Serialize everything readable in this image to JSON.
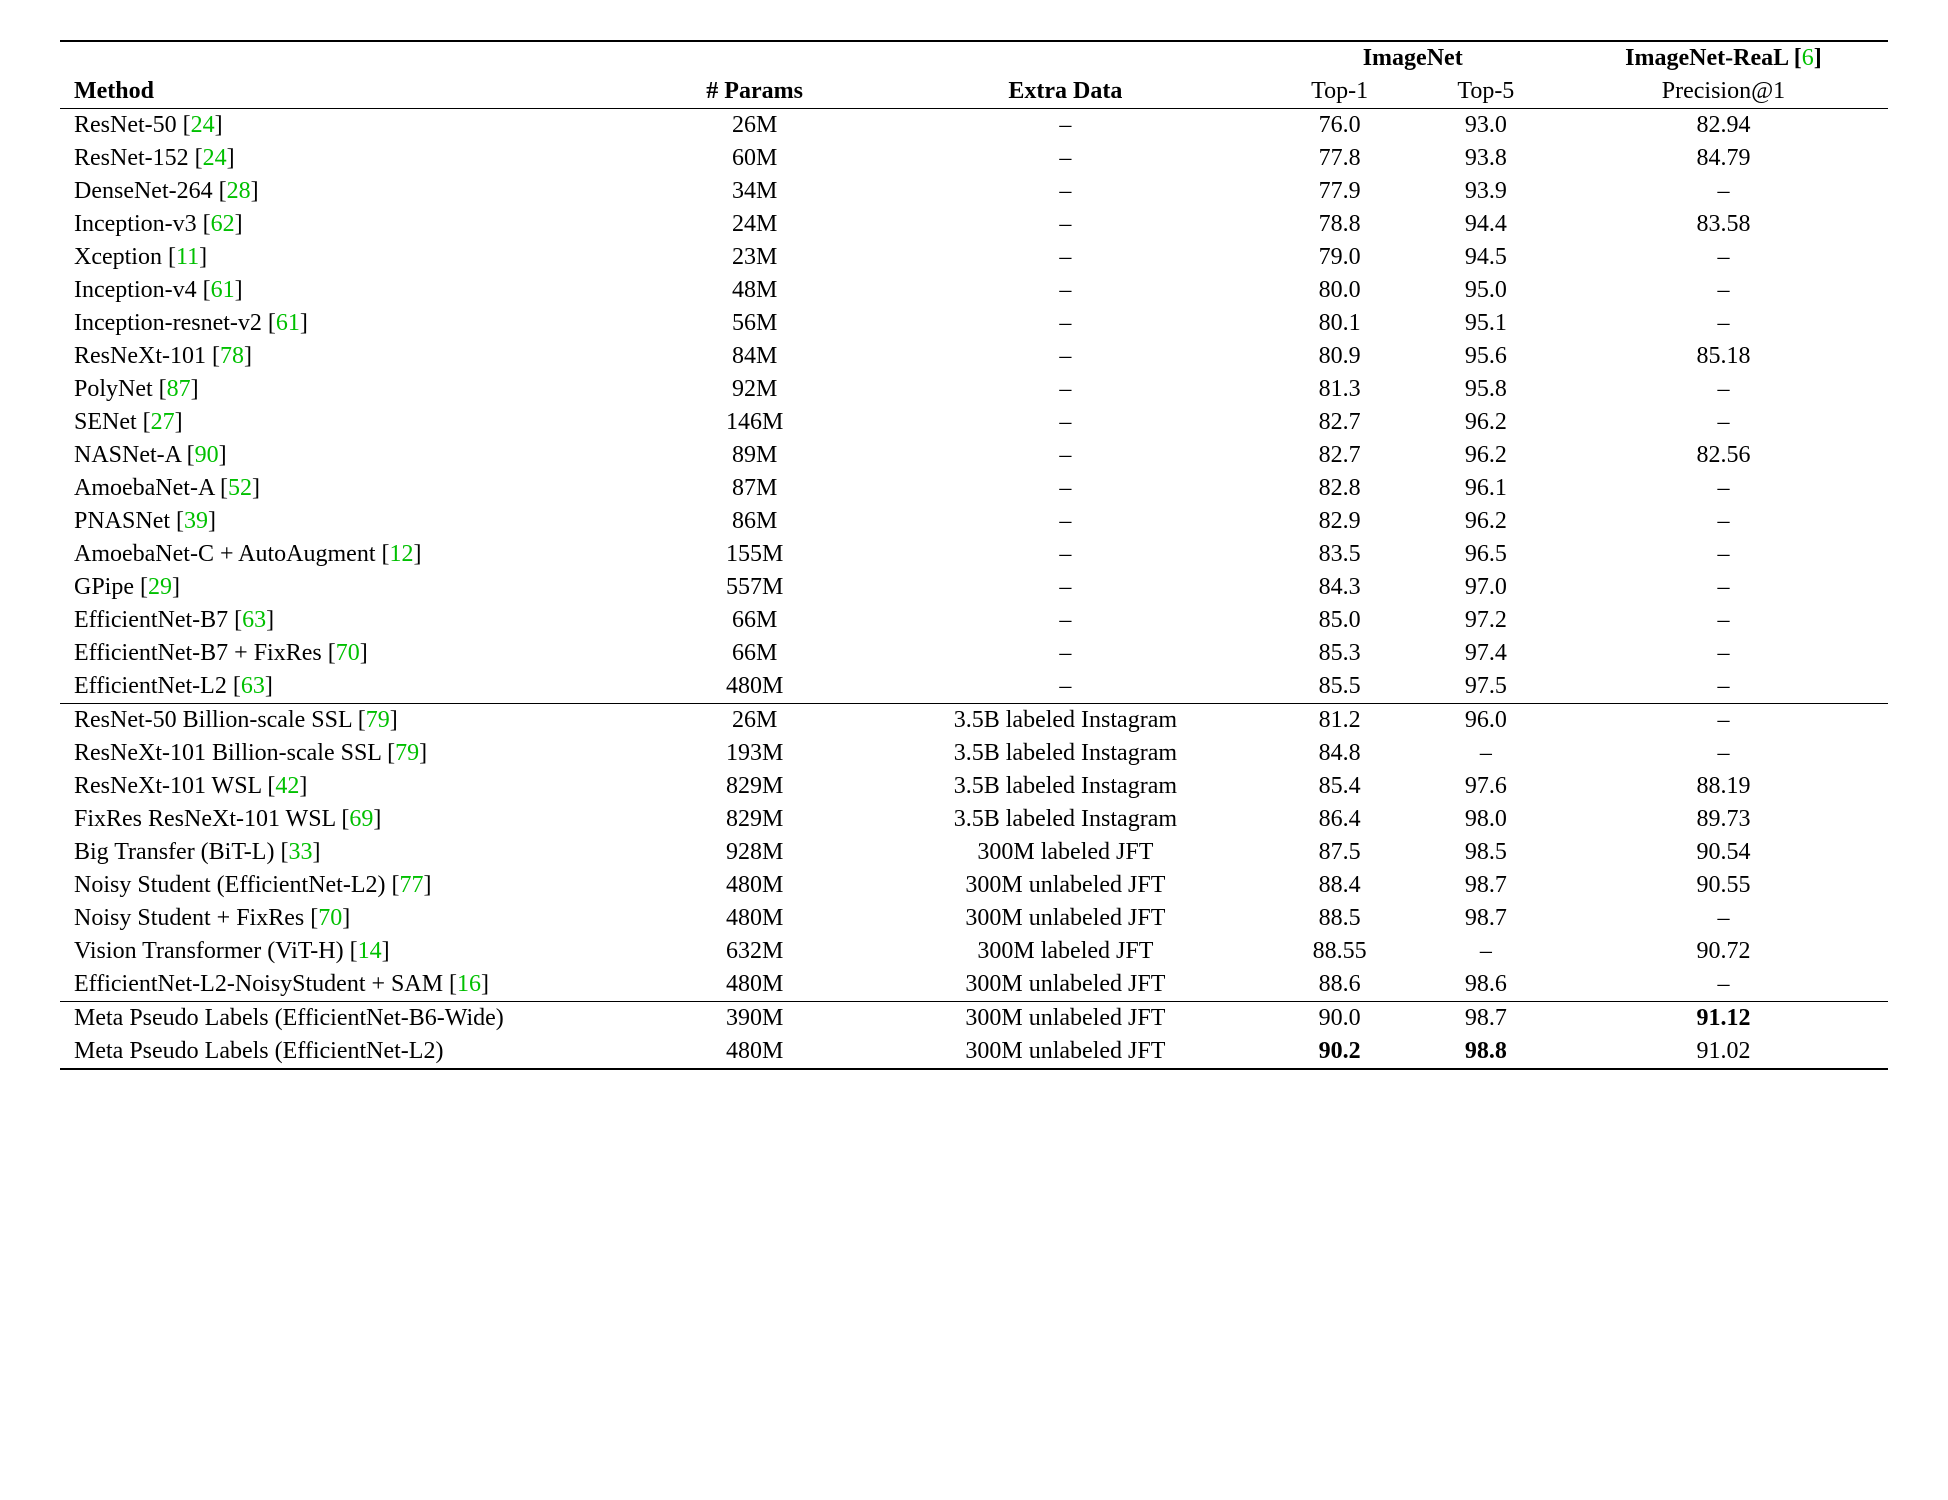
{
  "colors": {
    "citation": "#00c000",
    "text": "#000000",
    "background": "#ffffff",
    "rule": "#000000"
  },
  "font": {
    "family": "Times New Roman",
    "size_pt": 24
  },
  "headers": {
    "method": "Method",
    "params": "# Params",
    "extra": "Extra Data",
    "imagenet": "ImageNet",
    "imagenet_real": "ImageNet-ReaL",
    "imagenet_real_cite": "6",
    "top1": "Top-1",
    "top5": "Top-5",
    "precision": "Precision@1"
  },
  "sections": [
    {
      "rows": [
        {
          "method": "ResNet-50",
          "cite": "24",
          "params": "26M",
          "extra": "–",
          "top1": "76.0",
          "top5": "93.0",
          "prec": "82.94"
        },
        {
          "method": "ResNet-152",
          "cite": "24",
          "params": "60M",
          "extra": "–",
          "top1": "77.8",
          "top5": "93.8",
          "prec": "84.79"
        },
        {
          "method": "DenseNet-264",
          "cite": "28",
          "params": "34M",
          "extra": "–",
          "top1": "77.9",
          "top5": "93.9",
          "prec": "–"
        },
        {
          "method": "Inception-v3",
          "cite": "62",
          "params": "24M",
          "extra": "–",
          "top1": "78.8",
          "top5": "94.4",
          "prec": "83.58"
        },
        {
          "method": "Xception",
          "cite": "11",
          "params": "23M",
          "extra": "–",
          "top1": "79.0",
          "top5": "94.5",
          "prec": "–"
        },
        {
          "method": "Inception-v4",
          "cite": "61",
          "params": "48M",
          "extra": "–",
          "top1": "80.0",
          "top5": "95.0",
          "prec": "–"
        },
        {
          "method": "Inception-resnet-v2",
          "cite": "61",
          "params": "56M",
          "extra": "–",
          "top1": "80.1",
          "top5": "95.1",
          "prec": "–"
        },
        {
          "method": "ResNeXt-101",
          "cite": "78",
          "params": "84M",
          "extra": "–",
          "top1": "80.9",
          "top5": "95.6",
          "prec": "85.18"
        },
        {
          "method": "PolyNet",
          "cite": "87",
          "params": "92M",
          "extra": "–",
          "top1": "81.3",
          "top5": "95.8",
          "prec": "–"
        },
        {
          "method": "SENet",
          "cite": "27",
          "params": "146M",
          "extra": "–",
          "top1": "82.7",
          "top5": "96.2",
          "prec": "–"
        },
        {
          "method": "NASNet-A",
          "cite": "90",
          "params": "89M",
          "extra": "–",
          "top1": "82.7",
          "top5": "96.2",
          "prec": "82.56"
        },
        {
          "method": "AmoebaNet-A",
          "cite": "52",
          "params": "87M",
          "extra": "–",
          "top1": "82.8",
          "top5": "96.1",
          "prec": "–"
        },
        {
          "method": "PNASNet",
          "cite": "39",
          "params": "86M",
          "extra": "–",
          "top1": "82.9",
          "top5": "96.2",
          "prec": "–"
        },
        {
          "method": "AmoebaNet-C + AutoAugment",
          "cite": "12",
          "params": "155M",
          "extra": "–",
          "top1": "83.5",
          "top5": "96.5",
          "prec": "–"
        },
        {
          "method": "GPipe",
          "cite": "29",
          "params": "557M",
          "extra": "–",
          "top1": "84.3",
          "top5": "97.0",
          "prec": "–"
        },
        {
          "method": "EfficientNet-B7",
          "cite": "63",
          "params": "66M",
          "extra": "–",
          "top1": "85.0",
          "top5": "97.2",
          "prec": "–"
        },
        {
          "method": "EfficientNet-B7 + FixRes",
          "cite": "70",
          "params": "66M",
          "extra": "–",
          "top1": "85.3",
          "top5": "97.4",
          "prec": "–"
        },
        {
          "method": "EfficientNet-L2",
          "cite": "63",
          "params": "480M",
          "extra": "–",
          "top1": "85.5",
          "top5": "97.5",
          "prec": "–"
        }
      ]
    },
    {
      "rows": [
        {
          "method": "ResNet-50 Billion-scale SSL",
          "cite": "79",
          "params": "26M",
          "extra": "3.5B labeled Instagram",
          "top1": "81.2",
          "top5": "96.0",
          "prec": "–"
        },
        {
          "method": "ResNeXt-101 Billion-scale SSL",
          "cite": "79",
          "params": "193M",
          "extra": "3.5B labeled Instagram",
          "top1": "84.8",
          "top5": "–",
          "prec": "–"
        },
        {
          "method": "ResNeXt-101 WSL",
          "cite": "42",
          "params": "829M",
          "extra": "3.5B labeled Instagram",
          "top1": "85.4",
          "top5": "97.6",
          "prec": "88.19"
        },
        {
          "method": "FixRes ResNeXt-101 WSL",
          "cite": "69",
          "params": "829M",
          "extra": "3.5B labeled Instagram",
          "top1": "86.4",
          "top5": "98.0",
          "prec": "89.73"
        },
        {
          "method": "Big Transfer (BiT-L)",
          "cite": "33",
          "params": "928M",
          "extra": "300M labeled JFT",
          "top1": "87.5",
          "top5": "98.5",
          "prec": "90.54"
        },
        {
          "method": "Noisy Student (EfficientNet-L2)",
          "cite": "77",
          "params": "480M",
          "extra": "300M unlabeled JFT",
          "top1": "88.4",
          "top5": "98.7",
          "prec": "90.55"
        },
        {
          "method": "Noisy Student + FixRes",
          "cite": "70",
          "params": "480M",
          "extra": "300M unlabeled JFT",
          "top1": "88.5",
          "top5": "98.7",
          "prec": "–"
        },
        {
          "method": "Vision Transformer (ViT-H)",
          "cite": "14",
          "params": "632M",
          "extra": "300M labeled JFT",
          "top1": "88.55",
          "top5": "–",
          "prec": "90.72"
        },
        {
          "method": "EfficientNet-L2-NoisyStudent + SAM",
          "cite": "16",
          "params": "480M",
          "extra": "300M unlabeled JFT",
          "top1": "88.6",
          "top5": "98.6",
          "prec": "–"
        }
      ]
    },
    {
      "rows": [
        {
          "method": "Meta Pseudo Labels (EfficientNet-B6-Wide)",
          "cite": "",
          "params": "390M",
          "extra": "300M unlabeled JFT",
          "top1": "90.0",
          "top5": "98.7",
          "prec": "91.12",
          "prec_bold": true
        },
        {
          "method": "Meta Pseudo Labels (EfficientNet-L2)",
          "cite": "",
          "params": "480M",
          "extra": "300M unlabeled JFT",
          "top1": "90.2",
          "top1_bold": true,
          "top5": "98.8",
          "top5_bold": true,
          "prec": "91.02"
        }
      ]
    }
  ]
}
